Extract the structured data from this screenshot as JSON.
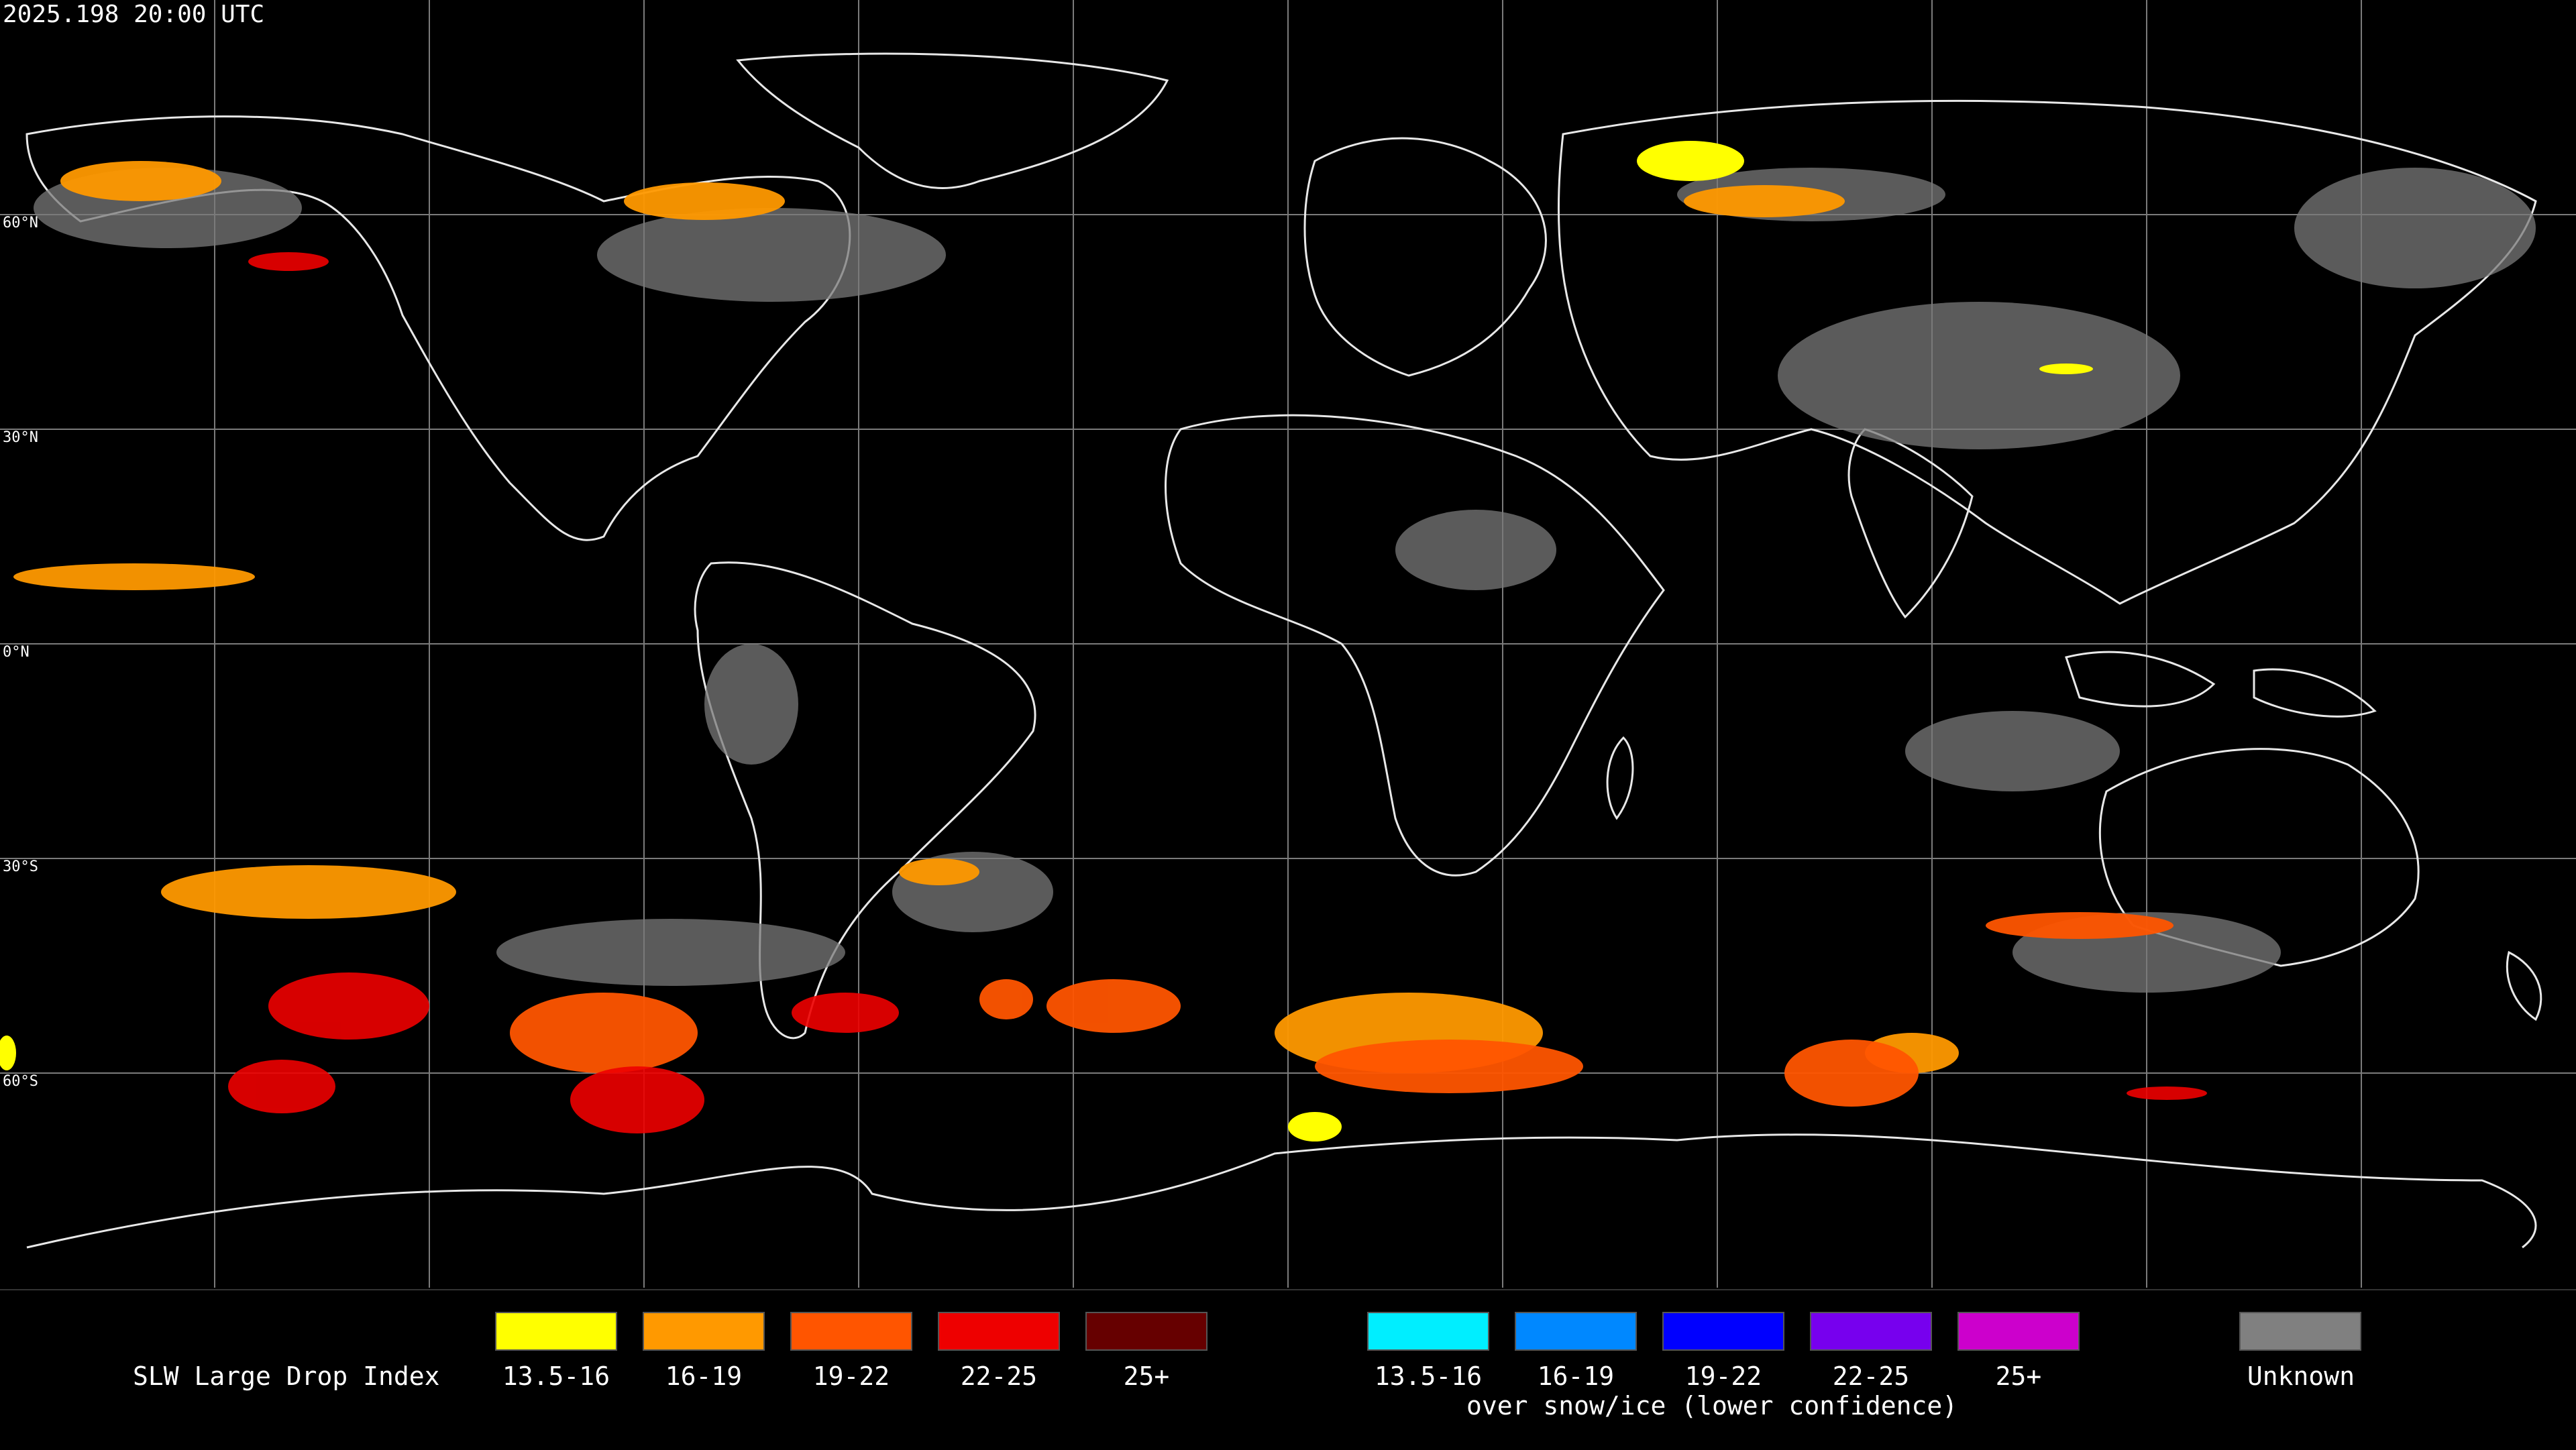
{
  "header": {
    "timestamp": "2025.198 20:00 UTC"
  },
  "latitude_labels": [
    "60°N",
    "30°N",
    "0°N",
    "30°S",
    "60°S"
  ],
  "legend": {
    "title": "SLW Large Drop Index",
    "primary": [
      {
        "label": "13.5-16",
        "color": "#ffff00"
      },
      {
        "label": "16-19",
        "color": "#ff9900"
      },
      {
        "label": "19-22",
        "color": "#ff5500"
      },
      {
        "label": "22-25",
        "color": "#ee0000"
      },
      {
        "label": "25+",
        "color": "#660000"
      }
    ],
    "snow_ice": [
      {
        "label": "13.5-16",
        "color": "#00eeff"
      },
      {
        "label": "16-19",
        "color": "#0088ff"
      },
      {
        "label": "19-22",
        "color": "#0000ff"
      },
      {
        "label": "22-25",
        "color": "#7700ee"
      },
      {
        "label": "25+",
        "color": "#cc00cc"
      }
    ],
    "snow_ice_note": "over snow/ice (lower confidence)",
    "unknown": {
      "label": "Unknown",
      "color": "#808080"
    }
  }
}
